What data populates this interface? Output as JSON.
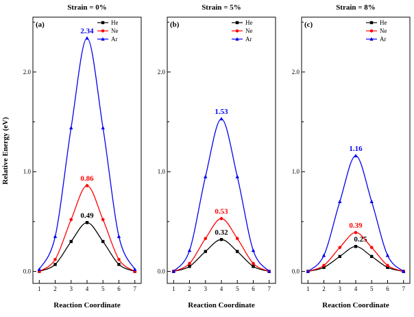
{
  "figure": {
    "ylabel": "Relative Energy (eV)",
    "xlabel": "Reaction Coordinate"
  },
  "chart_data": [
    {
      "type": "line",
      "panel_label": "(a)",
      "title": "Strain = 0%",
      "xlabel": "Reaction Coordinate",
      "ylabel": "Relative Energy (eV)",
      "x": [
        1,
        2,
        3,
        4,
        5,
        6,
        7
      ],
      "xlim": [
        0.6,
        7.4
      ],
      "ylim": [
        -0.12,
        2.55
      ],
      "xticks": [
        1,
        2,
        3,
        4,
        5,
        6,
        7
      ],
      "yticks_major": [
        {
          "v": 0,
          "label": "0.0"
        },
        {
          "v": 1,
          "label": "1.0"
        },
        {
          "v": 2,
          "label": "2.0"
        }
      ],
      "yticks_minor": [
        0.5,
        1.5,
        2.5
      ],
      "grid": false,
      "legend_position": "top-center-right",
      "series": [
        {
          "name": "He",
          "color": "#000000",
          "marker": "square",
          "values": [
            0.0,
            0.07,
            0.3,
            0.49,
            0.3,
            0.07,
            0.0
          ],
          "peak_annotation": {
            "text": "0.49",
            "dx": 0,
            "dy": 0
          }
        },
        {
          "name": "Ne",
          "color": "#ff0000",
          "marker": "circle",
          "values": [
            0.0,
            0.12,
            0.52,
            0.86,
            0.52,
            0.12,
            0.0
          ],
          "peak_annotation": {
            "text": "0.86",
            "dx": 0,
            "dy": 0
          }
        },
        {
          "name": "Ar",
          "color": "#0000ee",
          "marker": "triangle",
          "values": [
            0.02,
            0.35,
            1.44,
            2.34,
            1.44,
            0.35,
            0.02
          ],
          "peak_annotation": {
            "text": "2.34",
            "dx": 0,
            "dy": 0
          }
        }
      ]
    },
    {
      "type": "line",
      "panel_label": "(b)",
      "title": "Strain = 5%",
      "xlabel": "Reaction Coordinate",
      "ylabel": "Relative Energy (eV)",
      "x": [
        1,
        2,
        3,
        4,
        5,
        6,
        7
      ],
      "xlim": [
        0.6,
        7.4
      ],
      "ylim": [
        -0.12,
        2.55
      ],
      "xticks": [
        1,
        2,
        3,
        4,
        5,
        6,
        7
      ],
      "yticks_major": [
        {
          "v": 0,
          "label": "0.0"
        },
        {
          "v": 1,
          "label": "1.0"
        },
        {
          "v": 2,
          "label": "2.0"
        }
      ],
      "yticks_minor": [
        0.5,
        1.5,
        2.5
      ],
      "grid": false,
      "legend_position": "top-center-right",
      "series": [
        {
          "name": "He",
          "color": "#000000",
          "marker": "square",
          "values": [
            0.0,
            0.05,
            0.2,
            0.32,
            0.2,
            0.05,
            0.0
          ],
          "peak_annotation": {
            "text": "0.32",
            "dx": 0,
            "dy": 0
          }
        },
        {
          "name": "Ne",
          "color": "#ff0000",
          "marker": "circle",
          "values": [
            0.0,
            0.08,
            0.33,
            0.53,
            0.33,
            0.08,
            0.0
          ],
          "peak_annotation": {
            "text": "0.53",
            "dx": 0,
            "dy": 0
          }
        },
        {
          "name": "Ar",
          "color": "#0000ee",
          "marker": "triangle",
          "values": [
            0.0,
            0.21,
            0.95,
            1.53,
            0.95,
            0.21,
            0.0
          ],
          "peak_annotation": {
            "text": "1.53",
            "dx": 0,
            "dy": 0
          }
        }
      ]
    },
    {
      "type": "line",
      "panel_label": "(c)",
      "title": "Strain = 8%",
      "xlabel": "Reaction Coordinate",
      "ylabel": "Relative Energy (eV)",
      "x": [
        1,
        2,
        3,
        4,
        5,
        6,
        7
      ],
      "xlim": [
        0.6,
        7.4
      ],
      "ylim": [
        -0.12,
        2.55
      ],
      "xticks": [
        1,
        2,
        3,
        4,
        5,
        6,
        7
      ],
      "yticks_major": [
        {
          "v": 0,
          "label": "0.0"
        },
        {
          "v": 1,
          "label": "1.0"
        },
        {
          "v": 2,
          "label": "2.0"
        }
      ],
      "yticks_minor": [
        0.5,
        1.5,
        2.5
      ],
      "grid": false,
      "legend_position": "top-center-right",
      "series": [
        {
          "name": "He",
          "color": "#000000",
          "marker": "square",
          "values": [
            0.0,
            0.04,
            0.15,
            0.25,
            0.15,
            0.04,
            0.0
          ],
          "peak_annotation": {
            "text": "0.25",
            "dx": 7,
            "dy": 0
          }
        },
        {
          "name": "Ne",
          "color": "#ff0000",
          "marker": "circle",
          "values": [
            0.0,
            0.06,
            0.24,
            0.39,
            0.24,
            0.06,
            0.0
          ],
          "peak_annotation": {
            "text": "0.39",
            "dx": 0,
            "dy": 0
          }
        },
        {
          "name": "Ar",
          "color": "#0000ee",
          "marker": "triangle",
          "values": [
            0.0,
            0.16,
            0.7,
            1.16,
            0.7,
            0.16,
            0.0
          ],
          "peak_annotation": {
            "text": "1.16",
            "dx": 0,
            "dy": 0
          }
        }
      ]
    }
  ]
}
